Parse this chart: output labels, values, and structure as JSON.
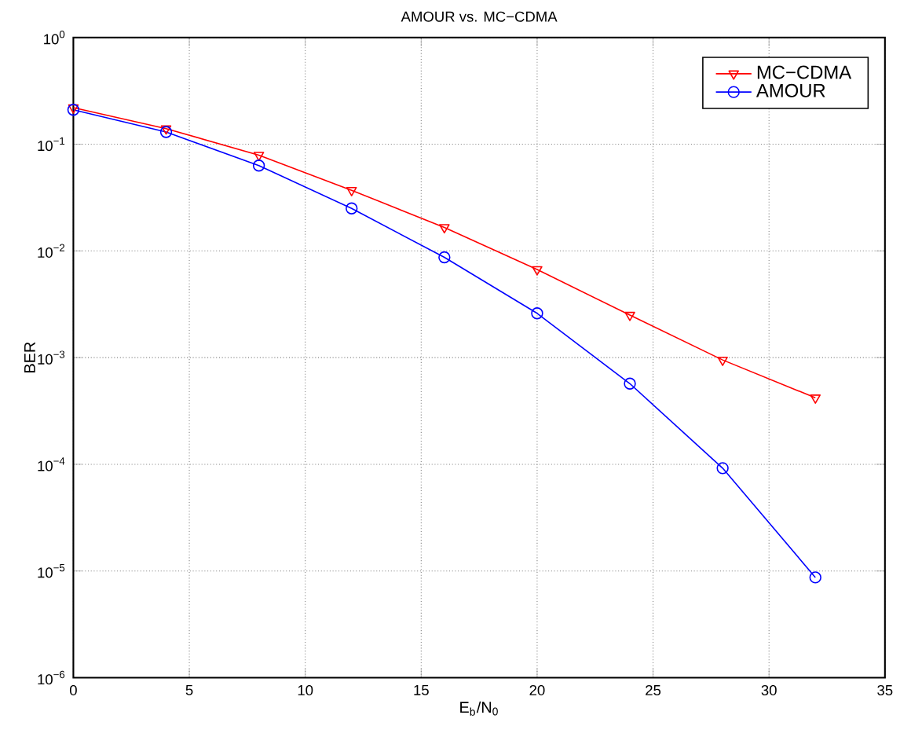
{
  "chart_data": {
    "type": "line",
    "title": "AMOUR vs. MC−CDMA",
    "xlabel": "E$_{b}$/N$_{0}$",
    "ylabel": "BER",
    "x": [
      0,
      4,
      8,
      12,
      16,
      20,
      24,
      28,
      32
    ],
    "series": [
      {
        "name": "MC−CDMA",
        "color": "#ff0000",
        "marker": "triangle",
        "values": [
          0.22,
          0.14,
          0.079,
          0.037,
          0.0166,
          0.0067,
          0.0025,
          0.00095,
          0.00042
        ]
      },
      {
        "name": "AMOUR",
        "color": "#0000ff",
        "marker": "circle",
        "values": [
          0.21,
          0.13,
          0.063,
          0.025,
          0.0087,
          0.0026,
          0.00057,
          9.2e-05,
          8.7e-06
        ]
      }
    ],
    "xlim": [
      0,
      35
    ],
    "xticks": [
      0,
      5,
      10,
      15,
      20,
      25,
      30,
      35
    ],
    "ylim": [
      1e-06,
      1
    ],
    "yticks": [
      {
        "value": 1e-06,
        "label": "10$^{−6}$"
      },
      {
        "value": 1e-05,
        "label": "10$^{−5}$"
      },
      {
        "value": 0.0001,
        "label": "10$^{−4}$"
      },
      {
        "value": 0.001,
        "label": "10$^{−3}$"
      },
      {
        "value": 0.01,
        "label": "10$^{−2}$"
      },
      {
        "value": 0.1,
        "label": "10$^{−1}$"
      },
      {
        "value": 1,
        "label": "10$^{0}$"
      }
    ],
    "log": "y",
    "grid": true,
    "legend": "top right",
    "line_style": "solid"
  }
}
